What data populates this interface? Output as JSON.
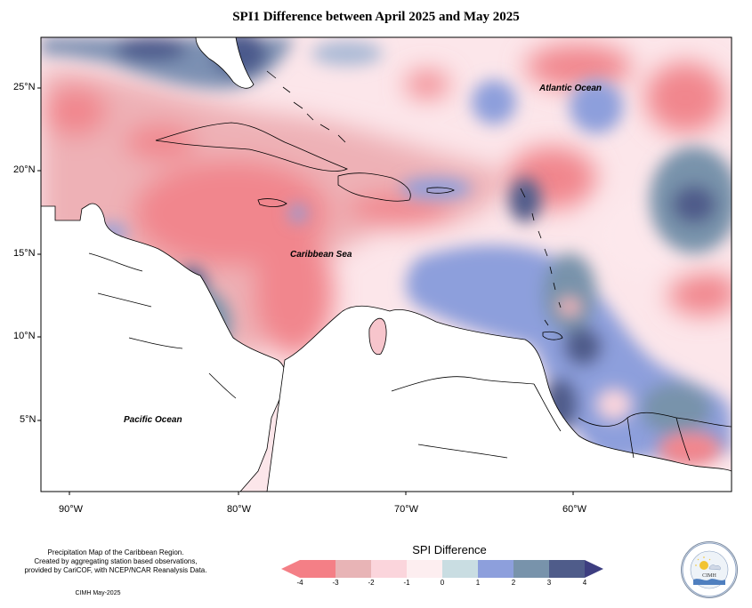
{
  "title": "SPI1 Difference between April 2025 and May 2025",
  "map": {
    "lat_labels": [
      "25°N",
      "20°N",
      "15°N",
      "10°N",
      "5°N"
    ],
    "lon_labels": [
      "90°W",
      "80°W",
      "70°W",
      "60°W"
    ],
    "ocean_labels": {
      "atlantic": "Atlantic Ocean",
      "caribbean": "Caribbean Sea",
      "pacific": "Pacific Ocean"
    }
  },
  "footer": {
    "credit_line1": "Precipitation Map of the Caribbean Region.",
    "credit_line2": "Created by aggregating station based observations,",
    "credit_line3": "provided by CariCOF, with NCEP/NCAR Reanalysis Data.",
    "stamp": "CIMH May-2025"
  },
  "legend": {
    "title": "SPI Difference",
    "ticks": [
      "-4",
      "-3",
      "-2",
      "-1",
      "0",
      "1",
      "2",
      "3",
      "4"
    ],
    "colors": [
      "#f47f86",
      "#e8b4b6",
      "#fbd5dc",
      "#fdeef0",
      "#c9dde2",
      "#8d9fdc",
      "#7893ab",
      "#4f5c8a"
    ],
    "under_color": "#f47f86",
    "over_color": "#3d3e80"
  },
  "logo": {
    "text": "CIMH",
    "ring_text": "Caribbean Institute for Meteorology and Hydrology"
  }
}
